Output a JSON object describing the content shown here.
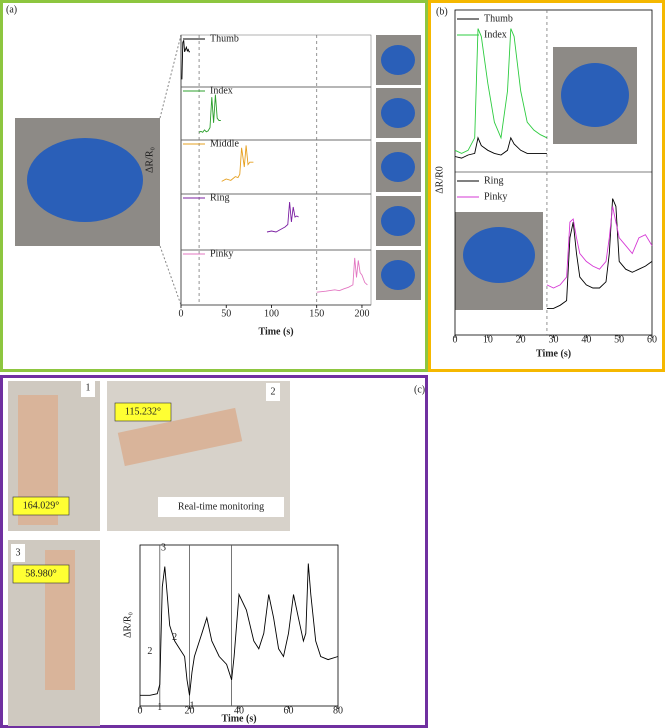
{
  "chart_data": [
    {
      "type": "line",
      "label": "(a)",
      "xlabel": "Time (s)",
      "ylabel": "ΔR/R₀",
      "xlim": [
        0,
        210
      ],
      "xticks": [
        0,
        50,
        100,
        150,
        200
      ],
      "vlines": [
        20,
        150
      ],
      "panels": [
        {
          "ylim": [
            0,
            1
          ],
          "series": [
            {
              "name": "Thumb",
              "color": "#000000",
              "x": [
                1,
                2,
                3,
                4,
                5,
                6,
                7,
                8,
                9,
                10
              ],
              "values": [
                0.1,
                0.9,
                0.95,
                0.7,
                0.75,
                0.8,
                0.72,
                0.75,
                0.7,
                0.7
              ]
            }
          ]
        },
        {
          "ylim": [
            0,
            1
          ],
          "series": [
            {
              "name": "Index",
              "color": "#2ca02c",
              "x": [
                20,
                22,
                24,
                26,
                28,
                30,
                32,
                34,
                36,
                38,
                40,
                42,
                44
              ],
              "values": [
                0.1,
                0.12,
                0.1,
                0.15,
                0.11,
                0.13,
                0.2,
                0.85,
                0.3,
                0.9,
                0.4,
                0.35,
                0.35
              ]
            }
          ]
        },
        {
          "ylim": [
            0,
            1
          ],
          "series": [
            {
              "name": "Middle",
              "color": "#e6a020",
              "x": [
                45,
                50,
                55,
                60,
                63,
                65,
                67,
                70,
                72,
                74,
                76,
                80
              ],
              "values": [
                0.2,
                0.25,
                0.22,
                0.3,
                0.28,
                0.35,
                0.9,
                0.5,
                0.95,
                0.55,
                0.6,
                0.6
              ]
            }
          ]
        },
        {
          "ylim": [
            0,
            1
          ],
          "series": [
            {
              "name": "Ring",
              "color": "#7b1fa2",
              "x": [
                95,
                100,
                105,
                110,
                115,
                118,
                120,
                122,
                124,
                126,
                128,
                130
              ],
              "values": [
                0.3,
                0.32,
                0.3,
                0.35,
                0.4,
                0.45,
                0.9,
                0.5,
                0.8,
                0.6,
                0.62,
                0.6
              ]
            }
          ]
        },
        {
          "ylim": [
            0,
            1
          ],
          "series": [
            {
              "name": "Pinky",
              "color": "#e377c2",
              "x": [
                150,
                160,
                170,
                175,
                180,
                185,
                190,
                192,
                194,
                196,
                198,
                200,
                203,
                206
              ],
              "values": [
                0.2,
                0.22,
                0.25,
                0.23,
                0.27,
                0.3,
                0.35,
                0.9,
                0.5,
                0.85,
                0.6,
                0.55,
                0.4,
                0.35
              ]
            }
          ]
        }
      ]
    },
    {
      "type": "line",
      "label": "(b)",
      "xlabel": "Time (s)",
      "ylabel": "ΔR/R0",
      "xlim": [
        0,
        60
      ],
      "xticks": [
        0,
        10,
        20,
        30,
        40,
        50,
        60
      ],
      "vlines": [
        28
      ],
      "panels": [
        {
          "ylim": [
            0,
            1
          ],
          "series": [
            {
              "name": "Thumb",
              "color": "#000000",
              "x": [
                0,
                2,
                4,
                6,
                7,
                8,
                10,
                12,
                14,
                16,
                17,
                18,
                20,
                22,
                24,
                26,
                28
              ],
              "values": [
                0.08,
                0.07,
                0.09,
                0.1,
                0.2,
                0.15,
                0.12,
                0.1,
                0.09,
                0.12,
                0.2,
                0.16,
                0.12,
                0.1,
                0.1,
                0.1,
                0.1
              ]
            },
            {
              "name": "Index",
              "color": "#2ecc40",
              "x": [
                0,
                2,
                4,
                6,
                7,
                8,
                10,
                12,
                14,
                16,
                17,
                18,
                20,
                22,
                24,
                26,
                28
              ],
              "values": [
                0.12,
                0.1,
                0.12,
                0.2,
                0.9,
                0.85,
                0.55,
                0.3,
                0.2,
                0.5,
                0.9,
                0.85,
                0.5,
                0.3,
                0.25,
                0.22,
                0.2
              ]
            }
          ]
        },
        {
          "ylim": [
            0,
            1
          ],
          "series": [
            {
              "name": "Ring",
              "color": "#000000",
              "x": [
                28,
                30,
                32,
                34,
                35,
                36,
                37,
                38,
                40,
                42,
                44,
                46,
                47,
                48,
                49,
                50,
                52,
                54,
                56,
                58,
                60
              ],
              "values": [
                0.15,
                0.15,
                0.17,
                0.2,
                0.6,
                0.7,
                0.5,
                0.35,
                0.3,
                0.28,
                0.28,
                0.32,
                0.5,
                0.85,
                0.8,
                0.45,
                0.4,
                0.38,
                0.4,
                0.42,
                0.45
              ]
            },
            {
              "name": "Pinky",
              "color": "#d63ad6",
              "x": [
                28,
                30,
                32,
                34,
                35,
                36,
                37,
                38,
                40,
                42,
                44,
                46,
                47,
                48,
                49,
                50,
                52,
                54,
                56,
                58,
                60
              ],
              "values": [
                0.3,
                0.28,
                0.3,
                0.35,
                0.7,
                0.72,
                0.6,
                0.5,
                0.45,
                0.42,
                0.4,
                0.45,
                0.6,
                0.8,
                0.7,
                0.6,
                0.55,
                0.5,
                0.6,
                0.62,
                0.55
              ]
            }
          ]
        }
      ]
    },
    {
      "type": "line",
      "label": "(c)",
      "xlabel": "Time (s)",
      "ylabel": "ΔR/R₀",
      "xlim": [
        0,
        80
      ],
      "xticks": [
        0,
        20,
        40,
        60,
        80
      ],
      "vlines": [
        8,
        20,
        37
      ],
      "annotations": [
        "3",
        "2",
        "2",
        "1",
        "1"
      ],
      "panels": [
        {
          "ylim": [
            0,
            1
          ],
          "series": [
            {
              "color": "#000000",
              "x": [
                0,
                4,
                7,
                8,
                9,
                10,
                11,
                12,
                14,
                16,
                18,
                19,
                20,
                21,
                22,
                25,
                27,
                29,
                32,
                35,
                37,
                38,
                40,
                43,
                46,
                48,
                50,
                52,
                54,
                56,
                58,
                60,
                62,
                64,
                66,
                67,
                68,
                69,
                71,
                73,
                76,
                80
              ],
              "values": [
                0.05,
                0.05,
                0.06,
                0.12,
                0.75,
                0.88,
                0.7,
                0.5,
                0.4,
                0.35,
                0.3,
                0.15,
                0.05,
                0.2,
                0.3,
                0.45,
                0.55,
                0.4,
                0.3,
                0.25,
                0.15,
                0.3,
                0.7,
                0.6,
                0.4,
                0.35,
                0.45,
                0.7,
                0.55,
                0.35,
                0.3,
                0.45,
                0.7,
                0.55,
                0.4,
                0.45,
                0.9,
                0.7,
                0.4,
                0.3,
                0.28,
                0.3
              ]
            }
          ]
        }
      ]
    }
  ],
  "photo_labels": {
    "numbers": [
      "1",
      "2",
      "3"
    ],
    "angles": [
      "164.029°",
      "115.232°",
      "58.980°"
    ],
    "caption": "Real-time monitoring"
  }
}
